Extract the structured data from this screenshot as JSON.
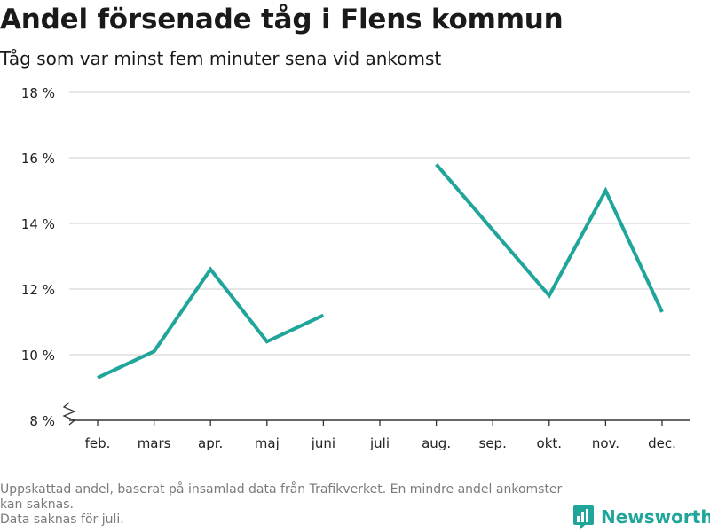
{
  "header": {
    "title": "Andel försenade tåg i Flens kommun",
    "subtitle": "Tåg som var minst fem minuter sena vid ankomst"
  },
  "footnotes": [
    "Uppskattad andel, baserat på insamlad data från Trafikverket. En mindre andel ankomster kan saknas.",
    "Data saknas för juli."
  ],
  "brand": {
    "name": "Newsworthy",
    "icon": "newsworthy-logo-icon",
    "color": "#1fa59a"
  },
  "chart_data": {
    "type": "line",
    "categories": [
      "feb.",
      "mars",
      "apr.",
      "maj",
      "juni",
      "juli",
      "aug.",
      "sep.",
      "okt.",
      "nov.",
      "dec."
    ],
    "series": [
      {
        "values": [
          9.3,
          10.1,
          12.6,
          10.4,
          11.2,
          null,
          15.8,
          13.8,
          11.8,
          15.0,
          11.3
        ],
        "color": "#1fa59a"
      }
    ],
    "ylim": [
      8,
      18
    ],
    "yticks": [
      8,
      10,
      12,
      14,
      16,
      18
    ],
    "ytick_labels": [
      "8 %",
      "10 %",
      "12 %",
      "14 %",
      "16 %",
      "18 %"
    ],
    "axis_break": true,
    "grid": true,
    "legend": "none"
  }
}
